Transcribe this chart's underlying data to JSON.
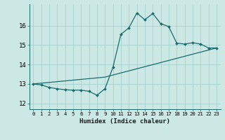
{
  "xlabel": "Humidex (Indice chaleur)",
  "xlim": [
    -0.5,
    23.5
  ],
  "ylim": [
    11.7,
    17.1
  ],
  "yticks": [
    12,
    13,
    14,
    15,
    16
  ],
  "xticks": [
    0,
    1,
    2,
    3,
    4,
    5,
    6,
    7,
    8,
    9,
    10,
    11,
    12,
    13,
    14,
    15,
    16,
    17,
    18,
    19,
    20,
    21,
    22,
    23
  ],
  "bg_color": "#cce8e4",
  "line_color": "#1a6b6b",
  "line1_x": [
    0,
    1,
    2,
    3,
    4,
    5,
    6,
    7,
    8,
    9,
    10,
    11,
    12,
    13,
    14,
    15,
    16,
    17,
    18,
    19,
    20,
    21,
    22,
    23
  ],
  "line1_y": [
    13.0,
    12.95,
    12.82,
    12.75,
    12.7,
    12.68,
    12.68,
    12.62,
    12.42,
    12.75,
    13.85,
    15.55,
    15.88,
    16.65,
    16.3,
    16.62,
    16.1,
    15.95,
    15.1,
    15.05,
    15.12,
    15.05,
    14.85,
    14.85
  ],
  "line2_x": [
    0,
    9,
    23
  ],
  "line2_y": [
    13.0,
    13.35,
    14.85
  ]
}
